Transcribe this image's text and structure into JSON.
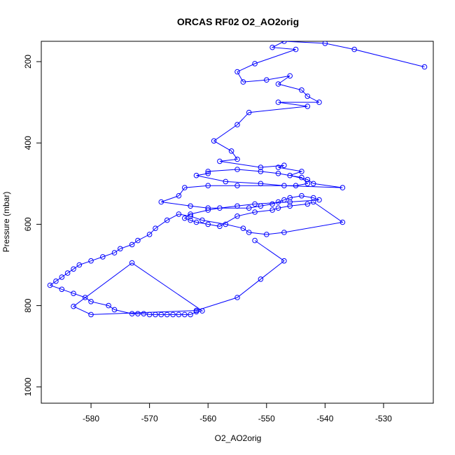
{
  "chart_data": {
    "type": "scatter",
    "title": "ORCAS RF02 O2_AO2orig",
    "xlabel": "O2_AO2orig",
    "ylabel": "Pressure (mbar)",
    "xlim": [
      -588.5,
      -521.5
    ],
    "ylim": [
      1040,
      150
    ],
    "y_reversed": true,
    "x_ticks": [
      -580,
      -570,
      -560,
      -550,
      -540,
      -530
    ],
    "y_ticks": [
      200,
      400,
      600,
      800,
      1000
    ],
    "grid": false,
    "legend": "none",
    "series": [
      {
        "color": "#0000ff",
        "marker": "open-circle",
        "line": true,
        "x": [
          -523,
          -535,
          -540,
          -547,
          -549,
          -545,
          -552,
          -555,
          -554,
          -550,
          -546,
          -548,
          -544,
          -543,
          -541,
          -548,
          -543,
          -553,
          -555,
          -559,
          -556,
          -555,
          -558,
          -551,
          -547,
          -548,
          -544,
          -546,
          -543,
          -542,
          -537,
          -547,
          -551,
          -557,
          -562,
          -560,
          -560,
          -555,
          -551,
          -548,
          -544,
          -543,
          -545,
          -555,
          -560,
          -564,
          -565,
          -568,
          -563,
          -560,
          -553,
          -551,
          -549,
          -548,
          -547,
          -546,
          -544,
          -542,
          -541,
          -546,
          -552,
          -555,
          -558,
          -560,
          -563,
          -564,
          -563,
          -562,
          -560,
          -558,
          -555,
          -552,
          -549,
          -548,
          -546,
          -543,
          -542,
          -537,
          -547,
          -550,
          -553,
          -554,
          -557,
          -561,
          -563,
          -565,
          -567,
          -569,
          -570,
          -572,
          -573,
          -575,
          -576,
          -578,
          -580,
          -582,
          -583,
          -584,
          -585,
          -586,
          -587,
          -585,
          -583,
          -581,
          -580,
          -577,
          -576,
          -573,
          -572,
          -571,
          -570,
          -569,
          -568,
          -567,
          -566,
          -565,
          -564,
          -563,
          -562,
          -561,
          -573,
          -583,
          -580,
          -562,
          -555,
          -551,
          -547,
          -552
        ],
        "y": [
          213,
          170,
          155,
          150,
          165,
          170,
          205,
          225,
          250,
          245,
          235,
          255,
          270,
          285,
          300,
          300,
          310,
          325,
          355,
          395,
          420,
          440,
          445,
          460,
          455,
          460,
          470,
          480,
          490,
          500,
          510,
          505,
          500,
          495,
          480,
          475,
          470,
          465,
          470,
          475,
          485,
          500,
          505,
          505,
          505,
          510,
          530,
          545,
          555,
          560,
          560,
          555,
          550,
          545,
          540,
          535,
          530,
          535,
          540,
          545,
          550,
          555,
          560,
          565,
          575,
          585,
          590,
          595,
          600,
          605,
          580,
          570,
          565,
          560,
          555,
          550,
          545,
          595,
          620,
          625,
          620,
          610,
          600,
          590,
          580,
          575,
          590,
          610,
          625,
          640,
          650,
          660,
          670,
          680,
          690,
          700,
          710,
          720,
          730,
          740,
          750,
          760,
          770,
          780,
          790,
          800,
          810,
          820,
          820,
          820,
          822,
          822,
          822,
          822,
          822,
          822,
          822,
          822,
          815,
          813,
          695,
          802,
          822,
          812,
          780,
          735,
          690,
          640
        ]
      }
    ]
  }
}
